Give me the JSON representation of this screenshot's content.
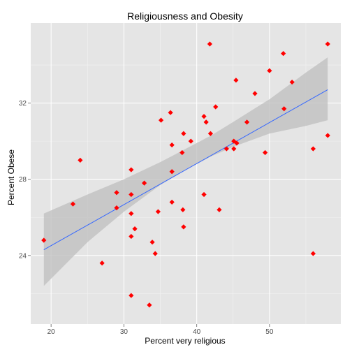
{
  "chart_data": {
    "type": "scatter",
    "title": "Religiousness and Obesity",
    "xlabel": "Percent very religious",
    "ylabel": "Percent Obese",
    "xlim": [
      17.2,
      59.8
    ],
    "ylim": [
      20.4,
      36.2
    ],
    "x_ticks": [
      20,
      30,
      40,
      50
    ],
    "x_tick_labels": [
      "20",
      "30",
      "40",
      "50"
    ],
    "y_ticks": [
      24,
      28,
      32
    ],
    "y_tick_labels": [
      "24",
      "28",
      "32"
    ],
    "grid": true,
    "legend": "none",
    "points": [
      {
        "x": 19.0,
        "y": 24.8
      },
      {
        "x": 23.0,
        "y": 26.7
      },
      {
        "x": 24.0,
        "y": 29.0
      },
      {
        "x": 27.0,
        "y": 23.6
      },
      {
        "x": 29.0,
        "y": 27.3
      },
      {
        "x": 29.0,
        "y": 26.5
      },
      {
        "x": 31.0,
        "y": 28.5
      },
      {
        "x": 31.0,
        "y": 27.2
      },
      {
        "x": 31.0,
        "y": 26.2
      },
      {
        "x": 31.5,
        "y": 25.4
      },
      {
        "x": 31.0,
        "y": 25.0
      },
      {
        "x": 31.0,
        "y": 21.9
      },
      {
        "x": 32.8,
        "y": 27.8
      },
      {
        "x": 33.5,
        "y": 21.4
      },
      {
        "x": 33.9,
        "y": 24.7
      },
      {
        "x": 34.3,
        "y": 24.1
      },
      {
        "x": 34.7,
        "y": 26.3
      },
      {
        "x": 35.1,
        "y": 31.1
      },
      {
        "x": 36.4,
        "y": 31.5
      },
      {
        "x": 36.6,
        "y": 29.8
      },
      {
        "x": 36.6,
        "y": 28.4
      },
      {
        "x": 36.6,
        "y": 26.8
      },
      {
        "x": 38.0,
        "y": 29.4
      },
      {
        "x": 38.2,
        "y": 30.4
      },
      {
        "x": 38.1,
        "y": 26.4
      },
      {
        "x": 38.2,
        "y": 25.5
      },
      {
        "x": 39.2,
        "y": 30.0
      },
      {
        "x": 41.0,
        "y": 31.3
      },
      {
        "x": 41.3,
        "y": 31.0
      },
      {
        "x": 41.9,
        "y": 30.4
      },
      {
        "x": 41.8,
        "y": 35.1
      },
      {
        "x": 41.0,
        "y": 27.2
      },
      {
        "x": 42.6,
        "y": 31.8
      },
      {
        "x": 43.1,
        "y": 26.4
      },
      {
        "x": 44.1,
        "y": 29.6
      },
      {
        "x": 45.1,
        "y": 30.0
      },
      {
        "x": 45.1,
        "y": 29.6
      },
      {
        "x": 45.5,
        "y": 29.9
      },
      {
        "x": 45.4,
        "y": 33.2
      },
      {
        "x": 46.9,
        "y": 31.0
      },
      {
        "x": 48.0,
        "y": 32.5
      },
      {
        "x": 49.4,
        "y": 29.4
      },
      {
        "x": 50.0,
        "y": 33.7
      },
      {
        "x": 51.9,
        "y": 34.6
      },
      {
        "x": 52.0,
        "y": 31.7
      },
      {
        "x": 53.1,
        "y": 33.1
      },
      {
        "x": 56.0,
        "y": 29.6
      },
      {
        "x": 56.0,
        "y": 24.1
      },
      {
        "x": 58.0,
        "y": 35.1
      },
      {
        "x": 58.0,
        "y": 30.3
      }
    ],
    "fit": {
      "method": "lm",
      "x": [
        19.0,
        58.0
      ],
      "y": [
        24.3,
        32.7
      ]
    },
    "confidence_band": {
      "x": [
        19.0,
        25.0,
        30.0,
        35.0,
        38.0,
        42.0,
        45.0,
        50.0,
        55.0,
        58.0
      ],
      "lower": [
        22.4,
        24.7,
        26.3,
        27.7,
        28.4,
        29.2,
        29.7,
        30.4,
        30.8,
        31.1
      ],
      "upper": [
        26.2,
        27.2,
        28.0,
        28.9,
        29.5,
        30.3,
        31.0,
        32.2,
        33.6,
        34.4
      ]
    },
    "colors": {
      "point": "#ff0000",
      "fit_line": "#3366ff",
      "band": "#bdbdbd",
      "panel": "#e5e5e5",
      "grid_major": "#ffffff",
      "grid_minor": "#f2f2f2"
    }
  }
}
